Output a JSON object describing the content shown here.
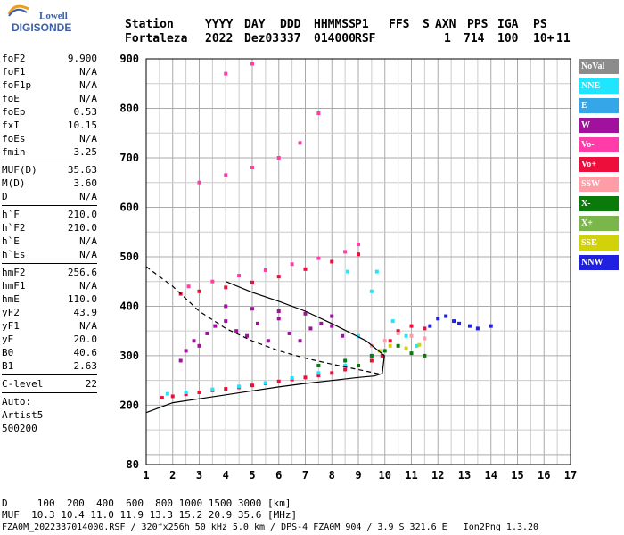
{
  "logo": {
    "top": "Lowell",
    "main": "DIGISONDE"
  },
  "header": {
    "labels": [
      "Station",
      "YYYY",
      "DAY",
      "DDD",
      "HHMMSS",
      "P1",
      "FFS",
      "S",
      "AXN",
      "PPS",
      "IGA",
      "PS"
    ],
    "values": [
      "Fortaleza",
      "2022",
      "Dez03",
      "337",
      "014000",
      "RSF",
      "1",
      "714",
      "100",
      "10+",
      "11"
    ]
  },
  "params": [
    {
      "name": "foF2",
      "value": "9.900"
    },
    {
      "name": "foF1",
      "value": "N/A"
    },
    {
      "name": "foF1p",
      "value": "N/A"
    },
    {
      "name": "foE",
      "value": "N/A"
    },
    {
      "name": "foEp",
      "value": "0.53"
    },
    {
      "name": "fxI",
      "value": "10.15"
    },
    {
      "name": "foEs",
      "value": "N/A"
    },
    {
      "name": "fmin",
      "value": "3.25"
    },
    {
      "sep": true
    },
    {
      "name": "MUF(D)",
      "value": "35.63"
    },
    {
      "name": "M(D)",
      "value": "3.60"
    },
    {
      "name": "D",
      "value": "N/A"
    },
    {
      "sep": true
    },
    {
      "name": "h`F",
      "value": "210.0"
    },
    {
      "name": "h`F2",
      "value": "210.0"
    },
    {
      "name": "h`E",
      "value": "N/A"
    },
    {
      "name": "h`Es",
      "value": "N/A"
    },
    {
      "sep": true
    },
    {
      "name": "hmF2",
      "value": "256.6"
    },
    {
      "name": "hmF1",
      "value": "N/A"
    },
    {
      "name": "hmE",
      "value": "110.0"
    },
    {
      "name": "yF2",
      "value": "43.9"
    },
    {
      "name": "yF1",
      "value": "N/A"
    },
    {
      "name": "yE",
      "value": "20.0"
    },
    {
      "name": "B0",
      "value": "40.6"
    },
    {
      "name": "B1",
      "value": "2.63"
    },
    {
      "sep": true
    },
    {
      "name": "C-level",
      "value": "22"
    },
    {
      "sep": true
    },
    {
      "name": "Auto:",
      "value": ""
    },
    {
      "name": "Artist5",
      "value": ""
    },
    {
      "name": "500200",
      "value": ""
    }
  ],
  "legend": [
    {
      "label": "NoVal",
      "color": "#8c8c8c"
    },
    {
      "label": "NNE",
      "color": "#1ee6ff"
    },
    {
      "label": "E",
      "color": "#35a7e8"
    },
    {
      "label": "W",
      "color": "#a0119e"
    },
    {
      "label": "Vo-",
      "color": "#ff3ca8"
    },
    {
      "label": "Vo+",
      "color": "#ee0e3c"
    },
    {
      "label": "SSW",
      "color": "#ff9da6"
    },
    {
      "label": "X-",
      "color": "#0a7a0a"
    },
    {
      "label": "X+",
      "color": "#7ab64a"
    },
    {
      "label": "SSE",
      "color": "#d2d20a"
    },
    {
      "label": "NNW",
      "color": "#2020e0"
    }
  ],
  "footer": {
    "line1": "D     100  200  400  600  800 1000 1500 3000 [km]",
    "line2": "MUF  10.3 10.4 11.0 11.9 13.3 15.2 20.9 35.6 [MHz]",
    "line3": "FZA0M_2022337014000.RSF / 320fx256h 50 kHz 5.0 km / DPS-4 FZA0M 904 / 3.9 S 321.6 E   Ion2Png 1.3.20"
  },
  "chart_data": {
    "type": "scatter",
    "title": "",
    "xlabel": "",
    "ylabel": "",
    "xlim": [
      1,
      17
    ],
    "ylim": [
      80,
      900
    ],
    "x_ticks": [
      "1",
      "2",
      "3",
      "4",
      "5",
      "6",
      "7",
      "8",
      "9",
      "10",
      "11",
      "12",
      "13",
      "14",
      "15",
      "16",
      "17"
    ],
    "y_ticks": [
      "80",
      "200",
      "300",
      "400",
      "500",
      "600",
      "700",
      "800",
      "900"
    ],
    "grid": true,
    "series": [
      {
        "name": "Vo+",
        "points": [
          [
            1.6,
            215
          ],
          [
            2.0,
            218
          ],
          [
            2.5,
            222
          ],
          [
            3.0,
            226
          ],
          [
            3.5,
            230
          ],
          [
            4.0,
            233
          ],
          [
            4.5,
            236
          ],
          [
            5.0,
            240
          ],
          [
            5.5,
            244
          ],
          [
            6.0,
            248
          ],
          [
            6.5,
            252
          ],
          [
            7.0,
            256
          ],
          [
            7.5,
            260
          ],
          [
            8.0,
            265
          ],
          [
            8.5,
            272
          ],
          [
            9.0,
            280
          ],
          [
            9.5,
            290
          ],
          [
            9.9,
            300
          ],
          [
            10.2,
            330
          ],
          [
            10.5,
            350
          ],
          [
            11.0,
            360
          ],
          [
            11.5,
            355
          ],
          [
            2.3,
            425
          ],
          [
            3.0,
            430
          ],
          [
            4.0,
            438
          ],
          [
            5.0,
            448
          ],
          [
            6.0,
            460
          ],
          [
            7.0,
            475
          ],
          [
            8.0,
            490
          ],
          [
            9.0,
            505
          ]
        ]
      },
      {
        "name": "W",
        "points": [
          [
            3.0,
            320
          ],
          [
            3.3,
            345
          ],
          [
            3.6,
            360
          ],
          [
            4.0,
            370
          ],
          [
            4.4,
            350
          ],
          [
            4.8,
            340
          ],
          [
            5.2,
            365
          ],
          [
            5.6,
            330
          ],
          [
            6.0,
            375
          ],
          [
            6.4,
            345
          ],
          [
            6.8,
            330
          ],
          [
            7.2,
            355
          ],
          [
            7.6,
            365
          ],
          [
            8.0,
            360
          ],
          [
            8.4,
            340
          ],
          [
            2.3,
            290
          ],
          [
            2.5,
            310
          ],
          [
            2.8,
            330
          ],
          [
            4.0,
            400
          ],
          [
            5.0,
            395
          ],
          [
            6.0,
            390
          ],
          [
            7.0,
            385
          ],
          [
            8.0,
            380
          ]
        ]
      },
      {
        "name": "NNE",
        "points": [
          [
            1.8,
            223
          ],
          [
            2.5,
            226
          ],
          [
            3.5,
            232
          ],
          [
            4.5,
            238
          ],
          [
            5.5,
            245
          ],
          [
            6.5,
            255
          ],
          [
            7.5,
            265
          ],
          [
            8.5,
            280
          ],
          [
            9.5,
            300
          ],
          [
            10.3,
            370
          ],
          [
            10.8,
            340
          ],
          [
            11.2,
            320
          ],
          [
            9.5,
            430
          ],
          [
            9.0,
            340
          ],
          [
            9.7,
            470
          ],
          [
            8.6,
            470
          ]
        ]
      },
      {
        "name": "X-",
        "points": [
          [
            9.5,
            300
          ],
          [
            10.0,
            310
          ],
          [
            10.5,
            320
          ],
          [
            11.0,
            305
          ],
          [
            11.5,
            300
          ],
          [
            9.0,
            280
          ],
          [
            8.5,
            290
          ],
          [
            7.5,
            280
          ]
        ]
      },
      {
        "name": "NNW",
        "points": [
          [
            11.7,
            360
          ],
          [
            12.0,
            375
          ],
          [
            12.3,
            380
          ],
          [
            12.6,
            370
          ],
          [
            12.8,
            365
          ],
          [
            13.2,
            360
          ],
          [
            13.5,
            355
          ],
          [
            14.0,
            360
          ]
        ]
      },
      {
        "name": "Vo-",
        "points": [
          [
            2.6,
            440
          ],
          [
            3.5,
            450
          ],
          [
            4.5,
            462
          ],
          [
            5.5,
            473
          ],
          [
            6.5,
            485
          ],
          [
            7.5,
            497
          ],
          [
            8.5,
            510
          ],
          [
            9.0,
            525
          ],
          [
            3.0,
            650
          ],
          [
            4.0,
            665
          ],
          [
            5.0,
            680
          ],
          [
            6.0,
            700
          ],
          [
            6.8,
            730
          ],
          [
            7.5,
            790
          ],
          [
            4.0,
            870
          ],
          [
            5.0,
            890
          ]
        ]
      },
      {
        "name": "SSE",
        "points": [
          [
            9.8,
            310
          ],
          [
            10.2,
            320
          ],
          [
            10.8,
            315
          ],
          [
            11.3,
            322
          ]
        ]
      },
      {
        "name": "SSW",
        "points": [
          [
            9.5,
            320
          ],
          [
            10.0,
            330
          ],
          [
            10.5,
            345
          ],
          [
            11.0,
            340
          ],
          [
            11.5,
            335
          ]
        ]
      }
    ],
    "curves": [
      {
        "name": "profile",
        "points": [
          [
            1.0,
            185
          ],
          [
            2.0,
            205
          ],
          [
            3.0,
            213
          ],
          [
            4.0,
            221
          ],
          [
            5.0,
            229
          ],
          [
            6.0,
            237
          ],
          [
            7.0,
            244
          ],
          [
            8.0,
            250
          ],
          [
            9.0,
            256
          ],
          [
            9.6,
            259
          ],
          [
            9.9,
            264
          ],
          [
            9.98,
            300
          ],
          [
            9.3,
            330
          ],
          [
            8.0,
            365
          ],
          [
            7.0,
            390
          ],
          [
            6.0,
            410
          ],
          [
            5.0,
            428
          ],
          [
            4.0,
            450
          ]
        ]
      },
      {
        "name": "trace-dashed",
        "points": [
          [
            1.0,
            480
          ],
          [
            1.5,
            460
          ],
          [
            2.0,
            440
          ],
          [
            3.0,
            390
          ],
          [
            4.0,
            355
          ],
          [
            5.0,
            330
          ],
          [
            6.0,
            310
          ],
          [
            7.0,
            295
          ],
          [
            8.0,
            283
          ],
          [
            9.0,
            272
          ],
          [
            9.9,
            262
          ]
        ]
      }
    ]
  }
}
